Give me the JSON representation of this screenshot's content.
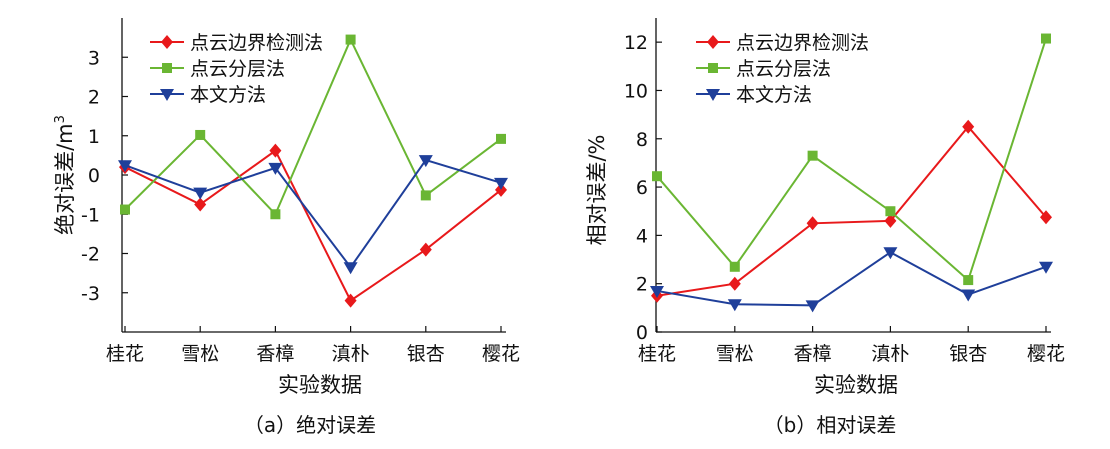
{
  "chart_data": [
    {
      "type": "line",
      "caption": "（a）绝对误差",
      "categories": [
        "桂花",
        "雪松",
        "香樟",
        "滇朴",
        "银杏",
        "樱花"
      ],
      "xlabel": "实验数据",
      "ylabel": "绝对误差/m",
      "ylabel_superscript": "3",
      "ylim": [
        -4,
        4
      ],
      "yticks": [
        -3,
        -2,
        -1,
        0,
        1,
        2,
        3
      ],
      "ytick_labels": [
        "-3",
        "-2",
        "-1",
        "0",
        "1",
        "2",
        "3"
      ],
      "grid": false,
      "legend_position": "top-left",
      "series": [
        {
          "name": "点云边界检测法",
          "color": "#e8191b",
          "marker": "diamond",
          "values": [
            0.2,
            -0.75,
            0.62,
            -3.2,
            -1.9,
            -0.38
          ]
        },
        {
          "name": "点云分层法",
          "color": "#6ab633",
          "marker": "square",
          "values": [
            -0.88,
            1.02,
            -1.0,
            3.45,
            -0.52,
            0.92
          ]
        },
        {
          "name": "本文方法",
          "color": "#1f3f9a",
          "marker": "triangle-down",
          "values": [
            0.25,
            -0.45,
            0.18,
            -2.35,
            0.38,
            -0.2
          ]
        }
      ]
    },
    {
      "type": "line",
      "caption": "（b）相对误差",
      "categories": [
        "桂花",
        "雪松",
        "香樟",
        "滇朴",
        "银杏",
        "樱花"
      ],
      "xlabel": "实验数据",
      "ylabel": "相对误差/%",
      "ylim": [
        0,
        13
      ],
      "yticks": [
        0,
        2,
        4,
        6,
        8,
        10,
        12
      ],
      "ytick_labels": [
        "0",
        "2",
        "4",
        "6",
        "8",
        "10",
        "12"
      ],
      "grid": false,
      "legend_position": "top-left",
      "series": [
        {
          "name": "点云边界检测法",
          "color": "#e8191b",
          "marker": "diamond",
          "values": [
            1.5,
            2.0,
            4.5,
            4.6,
            8.5,
            4.75
          ]
        },
        {
          "name": "点云分层法",
          "color": "#6ab633",
          "marker": "square",
          "values": [
            6.45,
            2.7,
            7.3,
            5.0,
            2.15,
            12.15
          ]
        },
        {
          "name": "本文方法",
          "color": "#1f3f9a",
          "marker": "triangle-down",
          "values": [
            1.7,
            1.15,
            1.1,
            3.3,
            1.55,
            2.7
          ]
        }
      ]
    }
  ]
}
